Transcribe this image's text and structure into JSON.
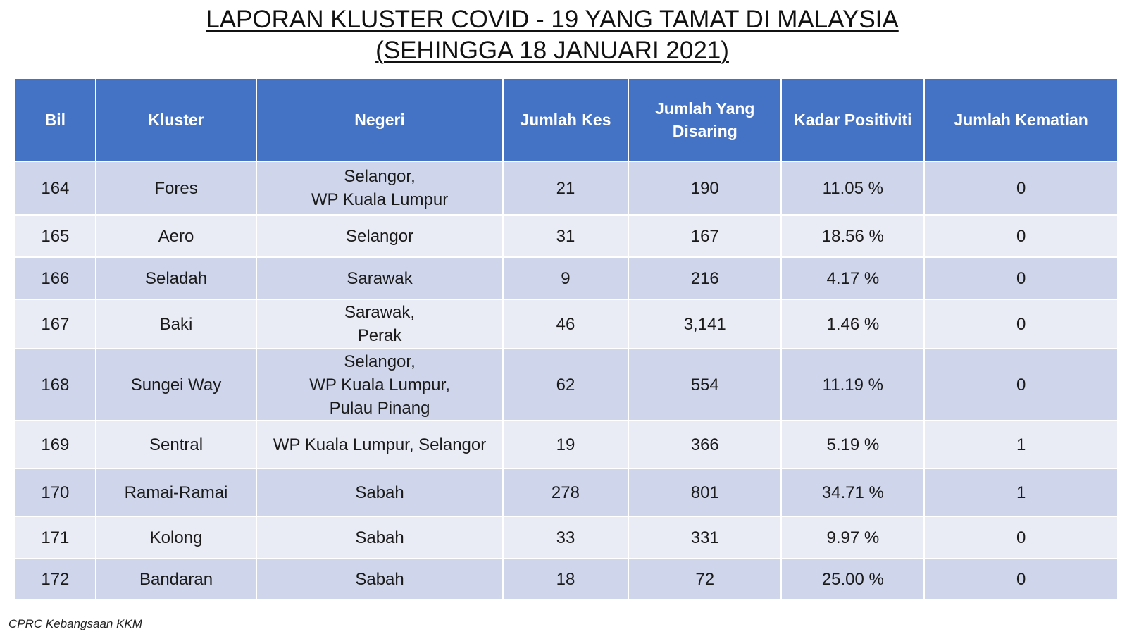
{
  "title": {
    "line1": "LAPORAN KLUSTER COVID - 19 YANG TAMAT DI MALAYSIA",
    "line2": "(SEHINGGA 18 JANUARI 2021)"
  },
  "table": {
    "headers": {
      "bil": "Bil",
      "kluster": "Kluster",
      "negeri": "Negeri",
      "jumlah_kes": "Jumlah Kes",
      "jumlah_disaring_1": "Jumlah Yang",
      "jumlah_disaring_2": "Disaring",
      "kadar_positiviti": "Kadar Positiviti",
      "jumlah_kematian": "Jumlah Kematian"
    },
    "rows": [
      {
        "bil": "164",
        "kluster": "Fores",
        "negeri": [
          "Selangor,",
          "WP Kuala Lumpur"
        ],
        "kes": "21",
        "disaring": "190",
        "positiviti": "11.05 %",
        "kematian": "0"
      },
      {
        "bil": "165",
        "kluster": "Aero",
        "negeri": [
          "Selangor"
        ],
        "kes": "31",
        "disaring": "167",
        "positiviti": "18.56 %",
        "kematian": "0"
      },
      {
        "bil": "166",
        "kluster": "Seladah",
        "negeri": [
          "Sarawak"
        ],
        "kes": "9",
        "disaring": "216",
        "positiviti": "4.17 %",
        "kematian": "0"
      },
      {
        "bil": "167",
        "kluster": "Baki",
        "negeri": [
          "Sarawak,",
          "Perak"
        ],
        "kes": "46",
        "disaring": "3,141",
        "positiviti": "1.46 %",
        "kematian": "0"
      },
      {
        "bil": "168",
        "kluster": "Sungei Way",
        "negeri": [
          "Selangor,",
          "WP Kuala Lumpur,",
          "Pulau Pinang"
        ],
        "kes": "62",
        "disaring": "554",
        "positiviti": "11.19 %",
        "kematian": "0"
      },
      {
        "bil": "169",
        "kluster": "Sentral",
        "negeri": [
          "WP Kuala Lumpur, Selangor"
        ],
        "kes": "19",
        "disaring": "366",
        "positiviti": "5.19 %",
        "kematian": "1"
      },
      {
        "bil": "170",
        "kluster": "Ramai-Ramai",
        "negeri": [
          "Sabah"
        ],
        "kes": "278",
        "disaring": "801",
        "positiviti": "34.71 %",
        "kematian": "1"
      },
      {
        "bil": "171",
        "kluster": "Kolong",
        "negeri": [
          "Sabah"
        ],
        "kes": "33",
        "disaring": "331",
        "positiviti": "9.97 %",
        "kematian": "0"
      },
      {
        "bil": "172",
        "kluster": "Bandaran",
        "negeri": [
          "Sabah"
        ],
        "kes": "18",
        "disaring": "72",
        "positiviti": "25.00 %",
        "kematian": "0"
      }
    ]
  },
  "source": "CPRC Kebangsaan KKM",
  "colors": {
    "header_bg": "#4472c4",
    "row_odd_bg": "#cfd5ea",
    "row_even_bg": "#e9ebf5"
  }
}
